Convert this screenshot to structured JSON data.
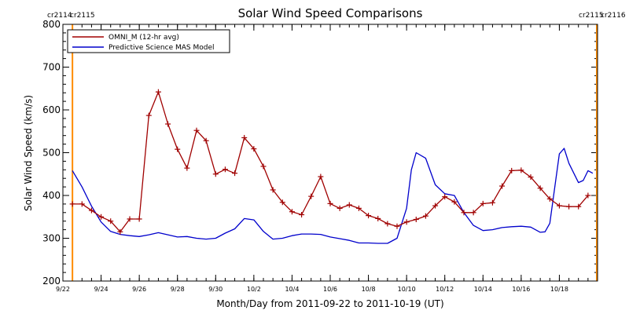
{
  "chart_data": {
    "type": "line",
    "title": "Solar Wind Speed Comparisons",
    "xlabel": "Month/Day from 2011-09-22 to 2011-10-19 (UT)",
    "ylabel": "Solar Wind Speed (km/s)",
    "xlim": [
      "2011-09-22",
      "2011-10-19"
    ],
    "ylim": [
      200,
      800
    ],
    "x_ticks": [
      {
        "date": "2011-09-22",
        "label": "9/22"
      },
      {
        "date": "2011-09-24",
        "label": "9/24"
      },
      {
        "date": "2011-09-26",
        "label": "9/26"
      },
      {
        "date": "2011-09-28",
        "label": "9/28"
      },
      {
        "date": "2011-09-30",
        "label": "9/30"
      },
      {
        "date": "2011-10-02",
        "label": "10/2"
      },
      {
        "date": "2011-10-04",
        "label": "10/4"
      },
      {
        "date": "2011-10-06",
        "label": "10/6"
      },
      {
        "date": "2011-10-08",
        "label": "10/8"
      },
      {
        "date": "2011-10-10",
        "label": "10/10"
      },
      {
        "date": "2011-10-12",
        "label": "10/12"
      },
      {
        "date": "2011-10-14",
        "label": "10/14"
      },
      {
        "date": "2011-10-16",
        "label": "10/16"
      },
      {
        "date": "2011-10-18",
        "label": "10/18"
      }
    ],
    "y_ticks": [
      200,
      300,
      400,
      500,
      600,
      700,
      800
    ],
    "legend_position": "top-left",
    "series": [
      {
        "name": "OMNI_M (12-hr avg)",
        "color": "#a00000",
        "marker": "plus",
        "points": [
          [
            "2011-09-22 12:00",
            380
          ],
          [
            "2011-09-23 00:00",
            380
          ],
          [
            "2011-09-23 12:00",
            365
          ],
          [
            "2011-09-24 00:00",
            350
          ],
          [
            "2011-09-24 12:00",
            340
          ],
          [
            "2011-09-25 00:00",
            315
          ],
          [
            "2011-09-25 12:00",
            345
          ],
          [
            "2011-09-26 00:00",
            345
          ],
          [
            "2011-09-26 12:00",
            587
          ],
          [
            "2011-09-27 00:00",
            642
          ],
          [
            "2011-09-27 12:00",
            567
          ],
          [
            "2011-09-28 00:00",
            508
          ],
          [
            "2011-09-28 12:00",
            464
          ],
          [
            "2011-09-29 00:00",
            552
          ],
          [
            "2011-09-29 12:00",
            528
          ],
          [
            "2011-09-30 00:00",
            450
          ],
          [
            "2011-09-30 12:00",
            461
          ],
          [
            "2011-10-01 00:00",
            452
          ],
          [
            "2011-10-01 12:00",
            535
          ],
          [
            "2011-10-02 00:00",
            509
          ],
          [
            "2011-10-02 12:00",
            468
          ],
          [
            "2011-10-03 00:00",
            413
          ],
          [
            "2011-10-03 12:00",
            384
          ],
          [
            "2011-10-04 00:00",
            362
          ],
          [
            "2011-10-04 12:00",
            355
          ],
          [
            "2011-10-05 00:00",
            398
          ],
          [
            "2011-10-05 12:00",
            444
          ],
          [
            "2011-10-06 00:00",
            381
          ],
          [
            "2011-10-06 12:00",
            370
          ],
          [
            "2011-10-07 00:00",
            378
          ],
          [
            "2011-10-07 12:00",
            370
          ],
          [
            "2011-10-08 00:00",
            353
          ],
          [
            "2011-10-08 12:00",
            346
          ],
          [
            "2011-10-09 00:00",
            334
          ],
          [
            "2011-10-09 12:00",
            328
          ],
          [
            "2011-10-10 00:00",
            338
          ],
          [
            "2011-10-10 12:00",
            344
          ],
          [
            "2011-10-11 00:00",
            352
          ],
          [
            "2011-10-11 12:00",
            376
          ],
          [
            "2011-10-12 00:00",
            397
          ],
          [
            "2011-10-12 12:00",
            385
          ],
          [
            "2011-10-13 00:00",
            360
          ],
          [
            "2011-10-13 12:00",
            360
          ],
          [
            "2011-10-14 00:00",
            381
          ],
          [
            "2011-10-14 12:00",
            383
          ],
          [
            "2011-10-15 00:00",
            422
          ],
          [
            "2011-10-15 12:00",
            458
          ],
          [
            "2011-10-16 00:00",
            459
          ],
          [
            "2011-10-16 12:00",
            443
          ],
          [
            "2011-10-17 00:00",
            417
          ],
          [
            "2011-10-17 12:00",
            392
          ],
          [
            "2011-10-18 00:00",
            376
          ],
          [
            "2011-10-18 12:00",
            374
          ],
          [
            "2011-10-19 00:00",
            374
          ],
          [
            "2011-10-19 12:00",
            400
          ]
        ]
      },
      {
        "name": "Predictive Science MAS Model",
        "color": "#0000cc",
        "marker": "none",
        "points": [
          [
            "2011-09-22 12:00",
            458
          ],
          [
            "2011-09-23 00:00",
            420
          ],
          [
            "2011-09-23 12:00",
            375
          ],
          [
            "2011-09-24 00:00",
            338
          ],
          [
            "2011-09-24 12:00",
            316
          ],
          [
            "2011-09-25 00:00",
            309
          ],
          [
            "2011-09-25 12:00",
            306
          ],
          [
            "2011-09-26 00:00",
            304
          ],
          [
            "2011-09-26 12:00",
            308
          ],
          [
            "2011-09-27 00:00",
            313
          ],
          [
            "2011-09-27 12:00",
            308
          ],
          [
            "2011-09-28 00:00",
            303
          ],
          [
            "2011-09-28 12:00",
            304
          ],
          [
            "2011-09-29 00:00",
            300
          ],
          [
            "2011-09-29 12:00",
            298
          ],
          [
            "2011-09-30 00:00",
            300
          ],
          [
            "2011-09-30 12:00",
            312
          ],
          [
            "2011-10-01 00:00",
            322
          ],
          [
            "2011-10-01 12:00",
            346
          ],
          [
            "2011-10-02 00:00",
            343
          ],
          [
            "2011-10-02 12:00",
            316
          ],
          [
            "2011-10-03 00:00",
            298
          ],
          [
            "2011-10-03 12:00",
            300
          ],
          [
            "2011-10-04 00:00",
            306
          ],
          [
            "2011-10-04 12:00",
            310
          ],
          [
            "2011-10-05 00:00",
            310
          ],
          [
            "2011-10-05 12:00",
            309
          ],
          [
            "2011-10-06 00:00",
            303
          ],
          [
            "2011-10-06 12:00",
            299
          ],
          [
            "2011-10-07 00:00",
            295
          ],
          [
            "2011-10-07 12:00",
            289
          ],
          [
            "2011-10-08 00:00",
            289
          ],
          [
            "2011-10-08 12:00",
            288
          ],
          [
            "2011-10-09 00:00",
            288
          ],
          [
            "2011-10-09 12:00",
            300
          ],
          [
            "2011-10-10 00:00",
            370
          ],
          [
            "2011-10-10 06:00",
            460
          ],
          [
            "2011-10-10 12:00",
            500
          ],
          [
            "2011-10-11 00:00",
            487
          ],
          [
            "2011-10-11 12:00",
            425
          ],
          [
            "2011-10-12 00:00",
            404
          ],
          [
            "2011-10-12 12:00",
            400
          ],
          [
            "2011-10-13 00:00",
            360
          ],
          [
            "2011-10-13 12:00",
            330
          ],
          [
            "2011-10-14 00:00",
            318
          ],
          [
            "2011-10-14 12:00",
            320
          ],
          [
            "2011-10-15 00:00",
            325
          ],
          [
            "2011-10-15 12:00",
            327
          ],
          [
            "2011-10-16 00:00",
            328
          ],
          [
            "2011-10-16 12:00",
            326
          ],
          [
            "2011-10-17 00:00",
            314
          ],
          [
            "2011-10-17 06:00",
            315
          ],
          [
            "2011-10-17 12:00",
            335
          ],
          [
            "2011-10-18 00:00",
            497
          ],
          [
            "2011-10-18 06:00",
            510
          ],
          [
            "2011-10-18 12:00",
            475
          ],
          [
            "2011-10-19 00:00",
            430
          ],
          [
            "2011-10-19 06:00",
            435
          ],
          [
            "2011-10-19 12:00",
            458
          ],
          [
            "2011-10-19 18:00",
            452
          ]
        ]
      }
    ],
    "carrington_markers": {
      "color": "#ff8c00",
      "lines": [
        "2011-09-22 12:00",
        "2011-10-19 23:00"
      ],
      "left_labels": [
        "cr2114",
        "cr2115"
      ],
      "right_labels": [
        "cr2115",
        "cr2116"
      ]
    }
  }
}
